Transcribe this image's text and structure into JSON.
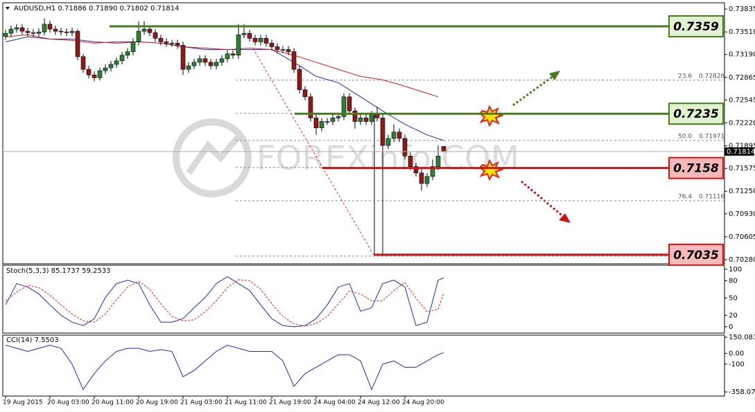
{
  "chart_data": [
    {
      "type": "candlestick",
      "title": "AUDUSD,H1  0.71886 0.71890 0.71802 0.71814",
      "watermark": "FOREXinfo.COM",
      "up_color": "#2f7d3a",
      "down_color": "#8e1b1b",
      "ylim": [
        0.70231,
        0.73914
      ],
      "yticks": [
        0.73835,
        {
          "value": 0.7351,
          "label": "0.73510"
        },
        {
          "value": 0.7319,
          "label": "0.73190"
        },
        0.72865,
        0.72545,
        {
          "value": 0.7222,
          "label": "0.72220"
        },
        0.71895,
        0.71575,
        {
          "value": 0.7125,
          "label": "0.71250"
        },
        {
          "value": 0.7093,
          "label": "0.70930"
        },
        0.70605,
        {
          "value": 0.7028,
          "label": "0.70280"
        }
      ],
      "xticks": [
        {
          "value": 0,
          "label": "19 Aug 2015"
        },
        {
          "value": 8,
          "label": "20 Aug 03:00"
        },
        {
          "value": 16,
          "label": "20 Aug 11:00"
        },
        {
          "value": 24,
          "label": "20 Aug 19:00"
        },
        {
          "value": 32,
          "label": "21 Aug 03:00"
        },
        {
          "value": 40,
          "label": "21 Aug 11:00"
        },
        {
          "value": 48,
          "label": "21 Aug 19:00"
        },
        {
          "value": 56,
          "label": "24 Aug 04:00"
        },
        {
          "value": 64,
          "label": "24 Aug 12:00"
        },
        {
          "value": 72,
          "label": "24 Aug 20:00"
        }
      ],
      "open": [
        0.7345,
        0.7349,
        0.7355,
        0.7357,
        0.7352,
        0.735,
        0.7349,
        0.7351,
        0.7362,
        0.7355,
        0.7352,
        0.7351,
        0.735,
        0.7352,
        0.7316,
        0.7298,
        0.729,
        0.7286,
        0.7296,
        0.73,
        0.7305,
        0.731,
        0.7318,
        0.7323,
        0.7337,
        0.7352,
        0.7355,
        0.735,
        0.7342,
        0.7337,
        0.7335,
        0.7335,
        0.7332,
        0.7298,
        0.7303,
        0.7308,
        0.7313,
        0.7308,
        0.7303,
        0.7308,
        0.7313,
        0.732,
        0.7318,
        0.7347,
        0.7349,
        0.7342,
        0.7337,
        0.7342,
        0.7335,
        0.733,
        0.7326,
        0.7326,
        0.7323,
        0.7298,
        0.7269,
        0.7259,
        0.7229,
        0.7215,
        0.7224,
        0.7224,
        0.7229,
        0.7231,
        0.7259,
        0.7239,
        0.7224,
        0.7229,
        0.7224,
        0.7234,
        0.7229,
        0.719,
        0.72,
        0.7209,
        0.72,
        0.7175,
        0.716,
        0.7151,
        0.7136,
        0.7146,
        0.716,
        0.71886
      ],
      "high": [
        0.7354,
        0.736,
        0.7362,
        0.7362,
        0.7357,
        0.7355,
        0.7356,
        0.737,
        0.7367,
        0.736,
        0.7357,
        0.7356,
        0.7357,
        0.7355,
        0.732,
        0.7303,
        0.7295,
        0.73,
        0.7305,
        0.731,
        0.7315,
        0.7323,
        0.7328,
        0.7342,
        0.7366,
        0.7366,
        0.736,
        0.7355,
        0.7347,
        0.7342,
        0.734,
        0.734,
        0.7337,
        0.7308,
        0.7313,
        0.7318,
        0.7318,
        0.7313,
        0.7313,
        0.7318,
        0.7325,
        0.7325,
        0.7362,
        0.7362,
        0.7354,
        0.7347,
        0.7347,
        0.7347,
        0.734,
        0.7335,
        0.7331,
        0.7331,
        0.7328,
        0.7303,
        0.7274,
        0.7264,
        0.7234,
        0.7229,
        0.7229,
        0.7234,
        0.7236,
        0.7264,
        0.7264,
        0.7244,
        0.7234,
        0.7234,
        0.7239,
        0.7245,
        0.7234,
        0.7205,
        0.722,
        0.7214,
        0.7205,
        0.718,
        0.7165,
        0.7156,
        0.7151,
        0.717,
        0.719,
        0.7189
      ],
      "low": [
        0.734,
        0.7344,
        0.735,
        0.7347,
        0.7345,
        0.7344,
        0.7344,
        0.7346,
        0.735,
        0.7347,
        0.7346,
        0.7345,
        0.7345,
        0.7311,
        0.7293,
        0.7285,
        0.7281,
        0.7282,
        0.7291,
        0.7295,
        0.73,
        0.7305,
        0.7313,
        0.7318,
        0.7332,
        0.7347,
        0.7345,
        0.7337,
        0.7332,
        0.733,
        0.733,
        0.7327,
        0.729,
        0.7293,
        0.7298,
        0.7303,
        0.7303,
        0.7298,
        0.7298,
        0.7303,
        0.7308,
        0.7313,
        0.7313,
        0.7342,
        0.7337,
        0.7332,
        0.7332,
        0.733,
        0.7325,
        0.7321,
        0.7321,
        0.7318,
        0.7293,
        0.7264,
        0.7254,
        0.7224,
        0.7205,
        0.721,
        0.7219,
        0.7219,
        0.7224,
        0.7226,
        0.7234,
        0.7214,
        0.7219,
        0.7219,
        0.7219,
        0.7224,
        0.7033,
        0.7185,
        0.7195,
        0.7195,
        0.717,
        0.7155,
        0.7146,
        0.7126,
        0.7131,
        0.7141,
        0.7155,
        0.71802
      ],
      "close": [
        0.7349,
        0.7355,
        0.7357,
        0.7352,
        0.735,
        0.7349,
        0.7351,
        0.7362,
        0.7355,
        0.7352,
        0.7351,
        0.735,
        0.7352,
        0.7316,
        0.7298,
        0.729,
        0.7286,
        0.7296,
        0.73,
        0.7305,
        0.731,
        0.7318,
        0.7323,
        0.7337,
        0.7352,
        0.7355,
        0.735,
        0.7342,
        0.7337,
        0.7335,
        0.7335,
        0.7332,
        0.7298,
        0.7303,
        0.7308,
        0.7313,
        0.7308,
        0.7303,
        0.7308,
        0.7313,
        0.732,
        0.7318,
        0.7347,
        0.7349,
        0.7342,
        0.7337,
        0.7342,
        0.7335,
        0.733,
        0.7326,
        0.7326,
        0.7323,
        0.7298,
        0.7269,
        0.7259,
        0.7229,
        0.7215,
        0.7224,
        0.7224,
        0.7229,
        0.7231,
        0.7259,
        0.7239,
        0.7224,
        0.7229,
        0.7224,
        0.7234,
        0.7229,
        0.719,
        0.72,
        0.7209,
        0.72,
        0.7175,
        0.716,
        0.7151,
        0.7136,
        0.7146,
        0.716,
        0.7175,
        0.71814
      ],
      "moving_averages": [
        {
          "color": "#1c2bb0",
          "x": [
            0,
            4,
            8,
            12,
            16,
            20,
            24,
            28,
            32,
            36,
            40,
            44,
            48,
            52,
            56,
            60,
            64,
            68,
            72,
            76,
            79
          ],
          "values": [
            0.7337,
            0.7344,
            0.7341,
            0.7341,
            0.7337,
            0.7335,
            0.7337,
            0.7335,
            0.733,
            0.7326,
            0.7326,
            0.7326,
            0.7326,
            0.7308,
            0.7288,
            0.7279,
            0.7259,
            0.7239,
            0.722,
            0.7205,
            0.7197
          ]
        },
        {
          "color": "#d11b1b",
          "x": [
            0,
            4,
            8,
            12,
            16,
            20,
            24,
            28,
            32,
            36,
            40,
            44,
            48,
            52,
            56,
            60,
            64,
            68,
            72,
            76,
            78
          ],
          "values": [
            0.7344,
            0.7347,
            0.7341,
            0.7339,
            0.7335,
            0.7337,
            0.7337,
            0.7335,
            0.733,
            0.7328,
            0.7326,
            0.7328,
            0.7326,
            0.7318,
            0.7308,
            0.7298,
            0.7288,
            0.7283,
            0.7274,
            0.7264,
            0.7259
          ]
        }
      ],
      "levels": [
        {
          "value": 0.7359,
          "color": "#4a7a1e",
          "fill": "#e3f1d3"
        },
        {
          "value": 0.7235,
          "color": "#4a7a1e",
          "fill": "#e3f1d3"
        },
        {
          "value": 0.7158,
          "color": "#c81414",
          "fill": "#f6b9b9"
        },
        {
          "value": 0.7035,
          "color": "#c81414",
          "fill": "#f6b9b9"
        }
      ],
      "fib": {
        "levels": [
          0.72826,
          0.72355,
          0.71971,
          0.71587,
          0.71116,
          0.7033
        ],
        "ratios": [
          23.6,
          null,
          {
            "value": 50,
            "label": "50.0"
          },
          null,
          76.4,
          null
        ]
      }
    },
    {
      "type": "line",
      "title": "Stoch(5,3,3) 85.1737 59.2533",
      "ylim": [
        -11,
        107
      ],
      "yticks": [
        100,
        80,
        50,
        20,
        0
      ],
      "x": [
        0,
        2,
        4,
        6,
        8,
        10,
        12,
        14,
        16,
        18,
        20,
        22,
        24,
        26,
        28,
        30,
        32,
        34,
        36,
        38,
        40,
        42,
        44,
        46,
        48,
        50,
        52,
        54,
        56,
        58,
        60,
        62,
        64,
        66,
        68,
        70,
        72,
        74,
        76,
        78,
        79
      ],
      "series": [
        {
          "color": "#1c2bb0",
          "values": [
            38,
            75,
            69,
            57,
            38,
            20,
            8,
            2,
            14,
            51,
            75,
            81,
            75,
            38,
            8,
            8,
            14,
            33,
            51,
            75,
            87,
            75,
            63,
            38,
            14,
            2,
            0,
            2,
            14,
            38,
            69,
            75,
            27,
            33,
            75,
            81,
            69,
            2,
            8,
            81,
            85.17
          ]
        },
        {
          "color": "#e02020",
          "dashed": true,
          "values": [
            45,
            60,
            72,
            68,
            55,
            38,
            22,
            10,
            8,
            22,
            47,
            69,
            79,
            65,
            40,
            18,
            10,
            12,
            26,
            45,
            68,
            82,
            80,
            65,
            40,
            18,
            5,
            1,
            6,
            18,
            40,
            62,
            57,
            45,
            45,
            63,
            77,
            50,
            26,
            30,
            59.25
          ]
        }
      ]
    },
    {
      "type": "line",
      "title": "CCI(14) 7.5503",
      "ylim": [
        -358.0793,
        150.0832
      ],
      "yticks": [
        150.0832,
        {
          "value": 0,
          "label": "0.00"
        },
        -100,
        -358.0793
      ],
      "x": [
        0,
        2,
        4,
        6,
        8,
        10,
        12,
        14,
        16,
        18,
        20,
        22,
        24,
        26,
        28,
        30,
        32,
        34,
        36,
        38,
        40,
        42,
        44,
        46,
        48,
        50,
        52,
        54,
        56,
        58,
        60,
        62,
        64,
        66,
        68,
        70,
        72,
        74,
        76,
        78,
        79
      ],
      "series": [
        {
          "color": "#1c2bb0",
          "values": [
            76,
            47,
            18,
            47,
            76,
            47,
            -100,
            -335,
            -188,
            -70,
            18,
            47,
            47,
            18,
            35,
            18,
            -218,
            -159,
            -70,
            18,
            76,
            47,
            18,
            18,
            18,
            -70,
            -306,
            -188,
            -129,
            -70,
            -12,
            -12,
            -70,
            -335,
            -100,
            -70,
            -129,
            -129,
            -70,
            -12,
            7.55
          ]
        }
      ]
    }
  ]
}
